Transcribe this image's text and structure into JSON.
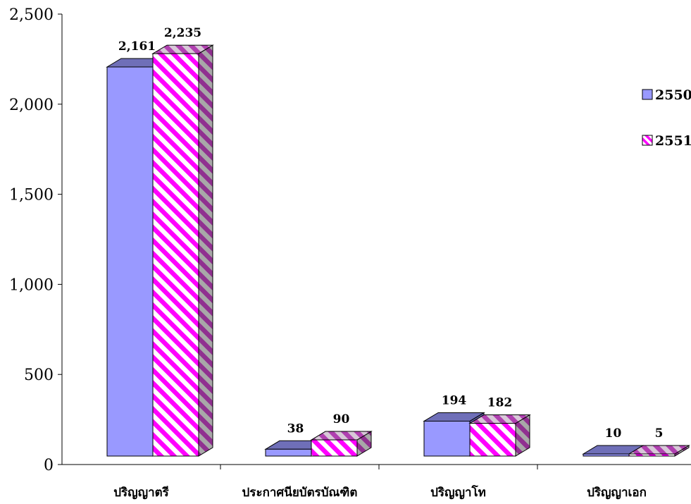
{
  "chart_data": {
    "type": "bar",
    "style": "3d-clustered-column",
    "categories": [
      "ปริญญาตรี",
      "ประกาศนียบัตรบัณฑิต",
      "ปริญญาโท",
      "ปริญญาเอก"
    ],
    "series": [
      {
        "name": "2550",
        "values": [
          2161,
          38,
          194,
          10
        ],
        "color": "#9999FF",
        "pattern": "solid"
      },
      {
        "name": "2551",
        "values": [
          2235,
          90,
          182,
          5
        ],
        "color": "#FF00FF",
        "pattern": "diagonal-stripes"
      }
    ],
    "data_labels": [
      [
        "2,161",
        "38",
        "194",
        "10"
      ],
      [
        "2,235",
        "90",
        "182",
        "5"
      ]
    ],
    "y_ticks": [
      "0",
      "500",
      "1,000",
      "1,500",
      "2,000",
      "2,500"
    ],
    "ylim": [
      0,
      2500
    ],
    "title": "",
    "xlabel": "",
    "ylabel": "",
    "legend_position": "right",
    "grid": false
  }
}
